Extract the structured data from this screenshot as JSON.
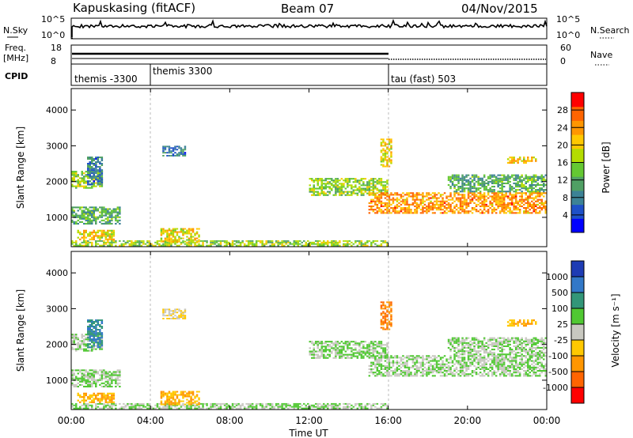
{
  "header": {
    "station": "Kapuskasing (fitACF)",
    "beam": "Beam 07",
    "date": "04/Nov/2015"
  },
  "top_panel": {
    "nsky_label": "N.Sky",
    "nsky_ticks": [
      "10^5",
      "10^0"
    ],
    "nsearch_label": "N.Search",
    "nsearch_ticks": [
      "10^5",
      "10^0"
    ],
    "freq_label": "Freq.",
    "freq_unit": "[MHz]",
    "freq_ticks": [
      "18",
      "8"
    ],
    "nave_label": "Nave",
    "nave_ticks": [
      "60",
      "0"
    ],
    "cpid_label": "CPID"
  },
  "cpid_segments": [
    {
      "start_hour": 0,
      "end_hour": 4,
      "label": "themis -3300"
    },
    {
      "start_hour": 4,
      "end_hour": 16,
      "label": "themis 3300"
    },
    {
      "start_hour": 16,
      "end_hour": 24,
      "label": "tau (fast) 503"
    }
  ],
  "x_axis": {
    "label": "Time UT",
    "ticks": [
      "00:00",
      "04:00",
      "08:00",
      "12:00",
      "16:00",
      "20:00",
      "00:00"
    ],
    "range_hours": [
      0,
      24
    ]
  },
  "y_axis": {
    "label": "Slant Range [km]",
    "ticks": [
      1000,
      2000,
      3000,
      4000
    ],
    "range_km": [
      180,
      4600
    ]
  },
  "power_colorbar": {
    "label": "Power [dB]",
    "ticks": [
      "4",
      "8",
      "12",
      "16",
      "20",
      "24",
      "28"
    ],
    "range": [
      0,
      32
    ],
    "colors": [
      "#0000ff",
      "#1e50c8",
      "#3c8296",
      "#50a064",
      "#64c832",
      "#b4dc00",
      "#ffc800",
      "#ff9600",
      "#ff6400",
      "#ff0000"
    ]
  },
  "velocity_colorbar": {
    "label": "Velocity [m s⁻¹]",
    "ticks": [
      "1000",
      "500",
      "100",
      "25",
      "-25",
      "-100",
      "-500",
      "-1000"
    ],
    "colors": [
      "#1e3cb4",
      "#3278c8",
      "#329678",
      "#50c832",
      "#c8c8c0",
      "#ffc800",
      "#ff9600",
      "#ff6400",
      "#ff0000"
    ]
  },
  "chart_data": {
    "type": "heatmap",
    "title": "Kapuskasing (fitACF)",
    "xlabel": "Time UT",
    "ylabel": "Slant Range [km]",
    "x_range_hours": [
      0,
      24
    ],
    "y_range_km": [
      180,
      4600
    ],
    "echo_regions": [
      {
        "t0": 0.0,
        "t1": 16.0,
        "r0": 190,
        "r1": 360,
        "power_db": 16,
        "velocity": 25
      },
      {
        "t0": 0.3,
        "t1": 2.2,
        "r0": 360,
        "r1": 650,
        "power_db": 20,
        "velocity": -100
      },
      {
        "t0": 4.5,
        "t1": 6.5,
        "r0": 300,
        "r1": 700,
        "power_db": 20,
        "velocity": -100
      },
      {
        "t0": 0.0,
        "t1": 2.5,
        "r0": 800,
        "r1": 1300,
        "power_db": 12,
        "velocity": 25
      },
      {
        "t0": 0.0,
        "t1": 1.6,
        "r0": 1800,
        "r1": 2300,
        "power_db": 16,
        "velocity": 25
      },
      {
        "t0": 0.8,
        "t1": 1.6,
        "r0": 1900,
        "r1": 2700,
        "power_db": 8,
        "velocity": 500
      },
      {
        "t0": 4.6,
        "t1": 5.8,
        "r0": 2700,
        "r1": 3000,
        "power_db": 8,
        "velocity": -25
      },
      {
        "t0": 12.0,
        "t1": 16.0,
        "r0": 1600,
        "r1": 2100,
        "power_db": 16,
        "velocity": 25
      },
      {
        "t0": 15.6,
        "t1": 16.2,
        "r0": 2400,
        "r1": 3200,
        "power_db": 20,
        "velocity": -500
      },
      {
        "t0": 15.0,
        "t1": 24.0,
        "r0": 1100,
        "r1": 1700,
        "power_db": 24,
        "velocity": 25
      },
      {
        "t0": 19.0,
        "t1": 24.0,
        "r0": 1700,
        "r1": 2200,
        "power_db": 12,
        "velocity": 25
      },
      {
        "t0": 22.0,
        "t1": 23.5,
        "r0": 2500,
        "r1": 2700,
        "power_db": 20,
        "velocity": -100
      }
    ]
  }
}
